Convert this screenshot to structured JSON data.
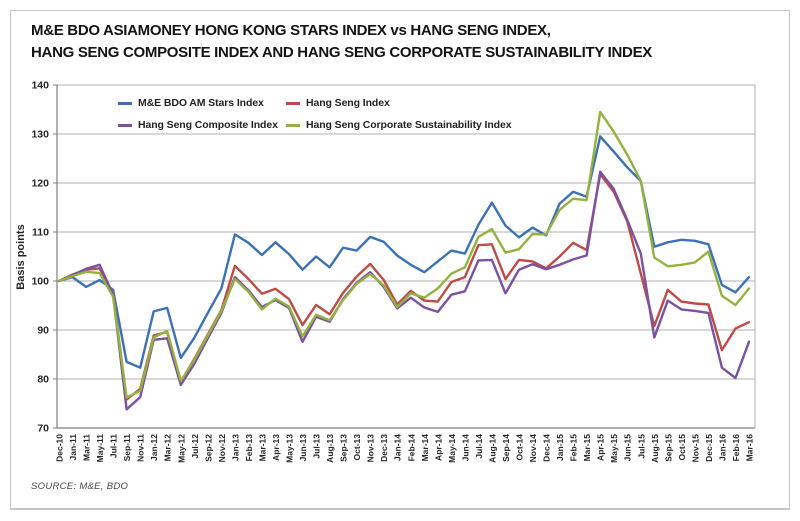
{
  "card": {
    "title_line1": "M&E BDO ASIAMONEY HONG KONG STARS INDEX vs HANG SENG INDEX,",
    "title_line2": "HANG SENG COMPOSITE INDEX AND HANG SENG CORPORATE SUSTAINABILITY INDEX",
    "source": "SOURCE: M&E, BDO"
  },
  "chart_data": {
    "type": "line",
    "title": "M&E BDO ASIAMONEY HONG KONG STARS INDEX vs HANG SENG INDEX, HANG SENG COMPOSITE INDEX AND HANG SENG CORPORATE SUSTAINABILITY INDEX",
    "xlabel": "",
    "ylabel": "Basis points",
    "ylim": [
      70,
      140
    ],
    "yticks": [
      70,
      80,
      90,
      100,
      110,
      120,
      130,
      140
    ],
    "grid": "horizontal",
    "legend_position": "top-left-inside-two-rows",
    "axis_color": "#7f7f7f",
    "gridline_color": "#b0b0b0",
    "categories": [
      "Dec-10",
      "Jan-11",
      "Mar-11",
      "May-11",
      "Jul-11",
      "Sep-11",
      "Nov-11",
      "Jan-12",
      "Mar-12",
      "May-12",
      "Jul-12",
      "Sep-12",
      "Nov-12",
      "Jan-13",
      "Feb-13",
      "Mar-13",
      "Apr-13",
      "May-13",
      "Jun-13",
      "Jul-13",
      "Aug-13",
      "Sep-13",
      "Oct-13",
      "Nov-13",
      "Dec-13",
      "Jan-14",
      "Feb-14",
      "Mar-14",
      "Apr-14",
      "May-14",
      "Jun-14",
      "Jul-14",
      "Aug-14",
      "Sep-14",
      "Oct-14",
      "Nov-14",
      "Dec-14",
      "Jan-15",
      "Feb-15",
      "Mar-15",
      "Apr-15",
      "May-15",
      "Jun-15",
      "Jul-15",
      "Aug-15",
      "Sep-15",
      "Oct-15",
      "Nov-15",
      "Dec-15",
      "Jan-16",
      "Feb-16",
      "Mar-16"
    ],
    "series": [
      {
        "name": "M&E BDO AM Stars Index",
        "color": "#3C72B5",
        "values": [
          100.0,
          100.8,
          98.8,
          100.2,
          98.2,
          83.5,
          82.3,
          93.8,
          94.5,
          84.3,
          88.4,
          93.5,
          98.5,
          109.5,
          107.8,
          105.3,
          107.9,
          105.5,
          102.3,
          105.0,
          102.8,
          106.8,
          106.2,
          109.0,
          108.0,
          105.2,
          103.3,
          101.8,
          104.0,
          106.2,
          105.6,
          111.5,
          116.0,
          111.3,
          108.9,
          110.9,
          109.3,
          115.8,
          118.2,
          117.2,
          129.5,
          126.4,
          123.2,
          120.4,
          107.0,
          107.9,
          108.4,
          108.2,
          107.5,
          99.2,
          97.7,
          100.8
        ]
      },
      {
        "name": "Hang Seng Index",
        "color": "#BF4B47",
        "values": [
          100.0,
          101.3,
          102.3,
          102.6,
          97.5,
          75.8,
          78.0,
          88.9,
          89.6,
          79.4,
          84.1,
          89.1,
          94.1,
          103.1,
          100.4,
          97.4,
          98.4,
          96.3,
          91.0,
          95.1,
          93.2,
          97.6,
          100.9,
          103.5,
          100.2,
          95.2,
          98.0,
          96.0,
          95.8,
          99.8,
          100.8,
          107.3,
          107.5,
          100.4,
          104.3,
          104.0,
          102.6,
          105.0,
          107.8,
          106.3,
          121.8,
          118.2,
          112.2,
          101.5,
          90.8,
          98.2,
          95.8,
          95.4,
          95.2,
          85.9,
          90.3,
          91.6
        ]
      },
      {
        "name": "Hang Seng Composite Index",
        "color": "#7A52A0",
        "values": [
          100.0,
          101.2,
          102.5,
          103.3,
          97.2,
          73.8,
          76.3,
          88.0,
          88.3,
          78.8,
          83.1,
          88.3,
          93.5,
          100.8,
          98.1,
          94.7,
          96.1,
          94.5,
          87.6,
          92.7,
          91.7,
          96.3,
          99.6,
          101.8,
          98.8,
          94.4,
          96.6,
          94.6,
          93.7,
          97.2,
          97.9,
          104.2,
          104.3,
          97.5,
          102.3,
          103.4,
          102.4,
          103.3,
          104.4,
          105.2,
          122.3,
          118.8,
          112.5,
          105.6,
          88.5,
          96.0,
          94.2,
          93.9,
          93.5,
          82.3,
          80.2,
          87.6
        ]
      },
      {
        "name": "Hang Seng Corporate Sustainability Index",
        "color": "#94B23F",
        "values": [
          100.0,
          101.0,
          101.9,
          101.6,
          96.8,
          76.2,
          77.6,
          88.5,
          89.8,
          79.6,
          83.9,
          88.9,
          93.9,
          100.4,
          97.8,
          94.2,
          96.4,
          94.8,
          88.7,
          93.1,
          92.0,
          96.1,
          99.4,
          101.4,
          99.1,
          94.7,
          97.5,
          96.6,
          98.5,
          101.5,
          102.8,
          109.0,
          110.6,
          105.8,
          106.5,
          109.6,
          109.5,
          114.5,
          116.8,
          116.5,
          134.5,
          130.5,
          125.8,
          120.4,
          104.8,
          103.0,
          103.3,
          103.8,
          106.0,
          97.0,
          95.1,
          98.5
        ]
      }
    ]
  }
}
